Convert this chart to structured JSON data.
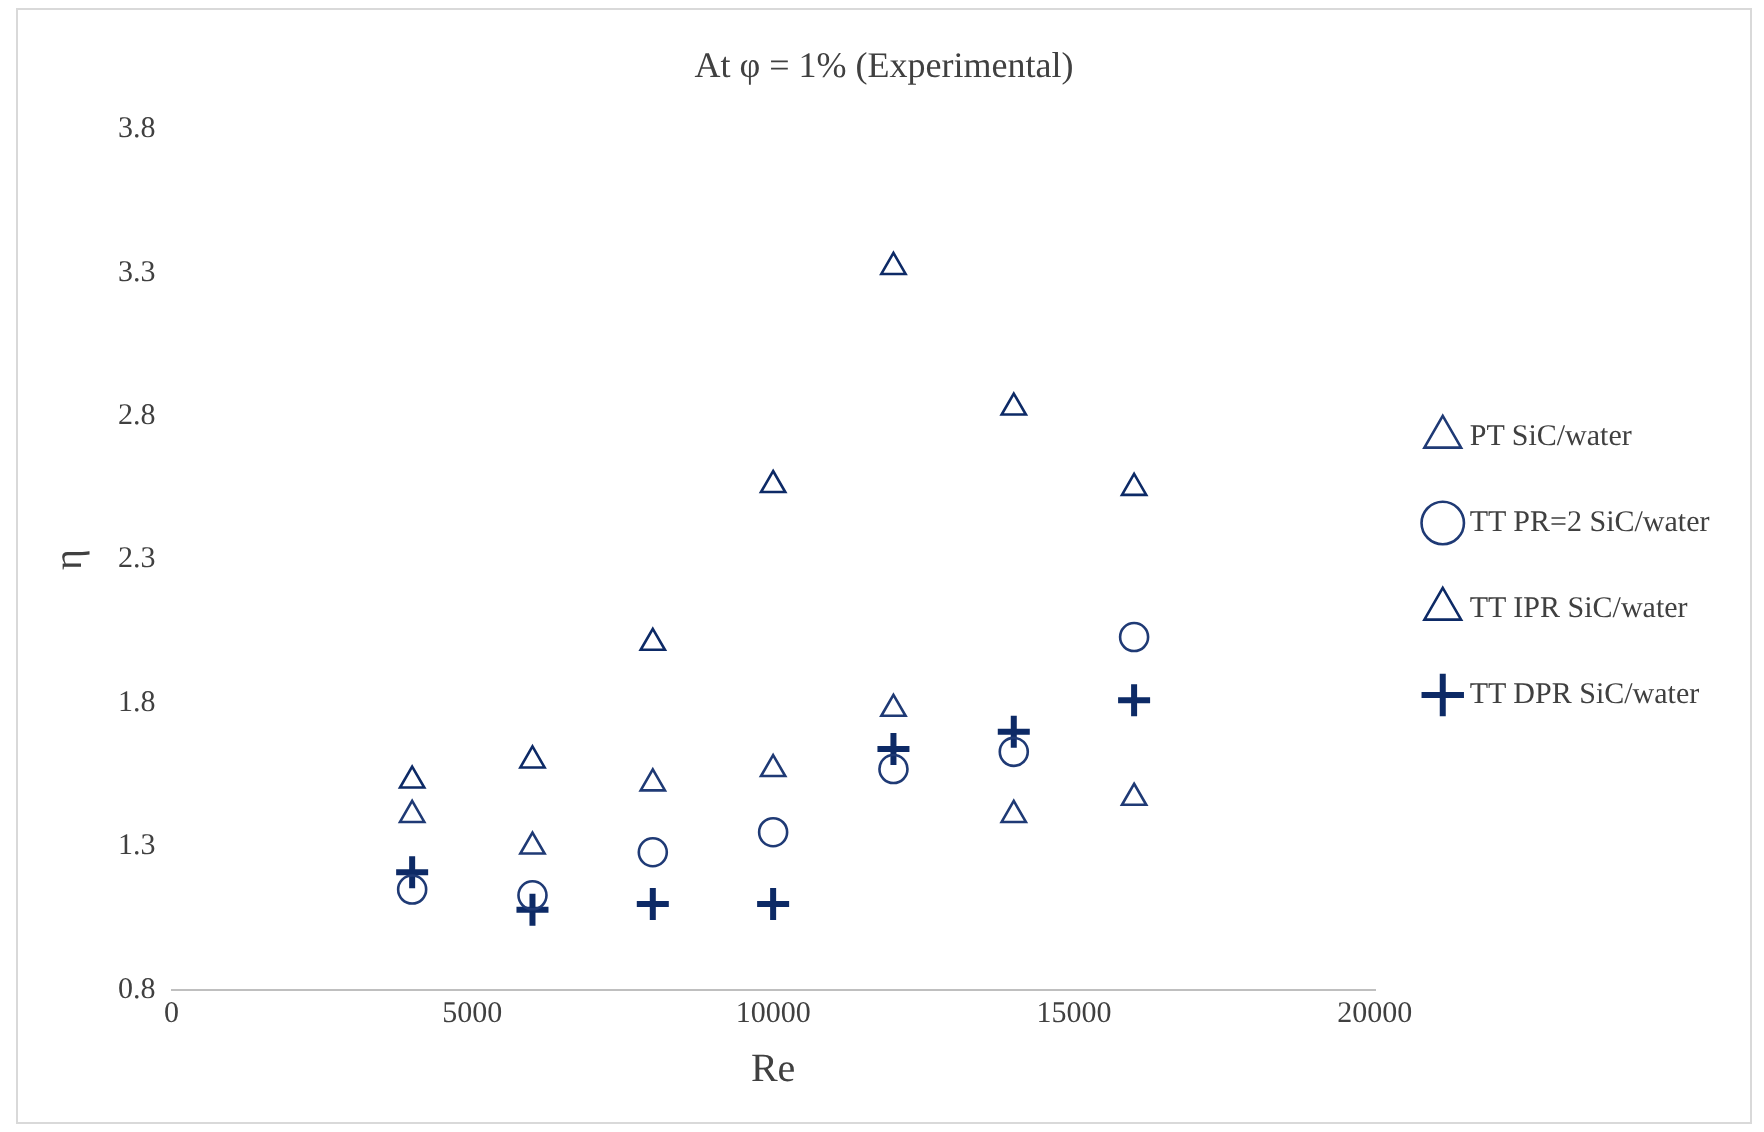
{
  "chart_data": {
    "type": "scatter",
    "title": "At φ = 1% (Experimental)",
    "xlabel": "Re",
    "ylabel": "η",
    "x": [
      4000,
      6000,
      8000,
      10000,
      12000,
      14000,
      16000
    ],
    "series": [
      {
        "name": "PT SiC/water",
        "color": "#1f3a75",
        "marker": "triangle",
        "values": [
          1.41,
          1.3,
          1.52,
          1.57,
          1.78,
          1.41,
          1.47
        ]
      },
      {
        "name": "TT PR=2 SiC/water",
        "color": "#1f3a75",
        "marker": "circle",
        "values": [
          1.15,
          1.13,
          1.28,
          1.35,
          1.57,
          1.63,
          2.03
        ]
      },
      {
        "name": "TT IPR SiC/water",
        "color": "#0d2a66",
        "marker": "triangle",
        "values": [
          1.53,
          1.6,
          2.01,
          2.56,
          3.32,
          2.83,
          2.55
        ]
      },
      {
        "name": "TT DPR SiC/water",
        "color": "#0d2a66",
        "marker": "cross",
        "values": [
          1.21,
          1.08,
          1.1,
          1.1,
          1.64,
          1.7,
          1.81
        ]
      }
    ],
    "xlim": [
      0,
      20000
    ],
    "xticks": [
      0,
      5000,
      10000,
      15000,
      20000
    ],
    "ylim": [
      0.8,
      3.8
    ],
    "yticks": [
      0.8,
      1.3,
      1.8,
      2.3,
      2.8,
      3.3,
      3.8
    ],
    "grid": false,
    "legend": "right"
  }
}
